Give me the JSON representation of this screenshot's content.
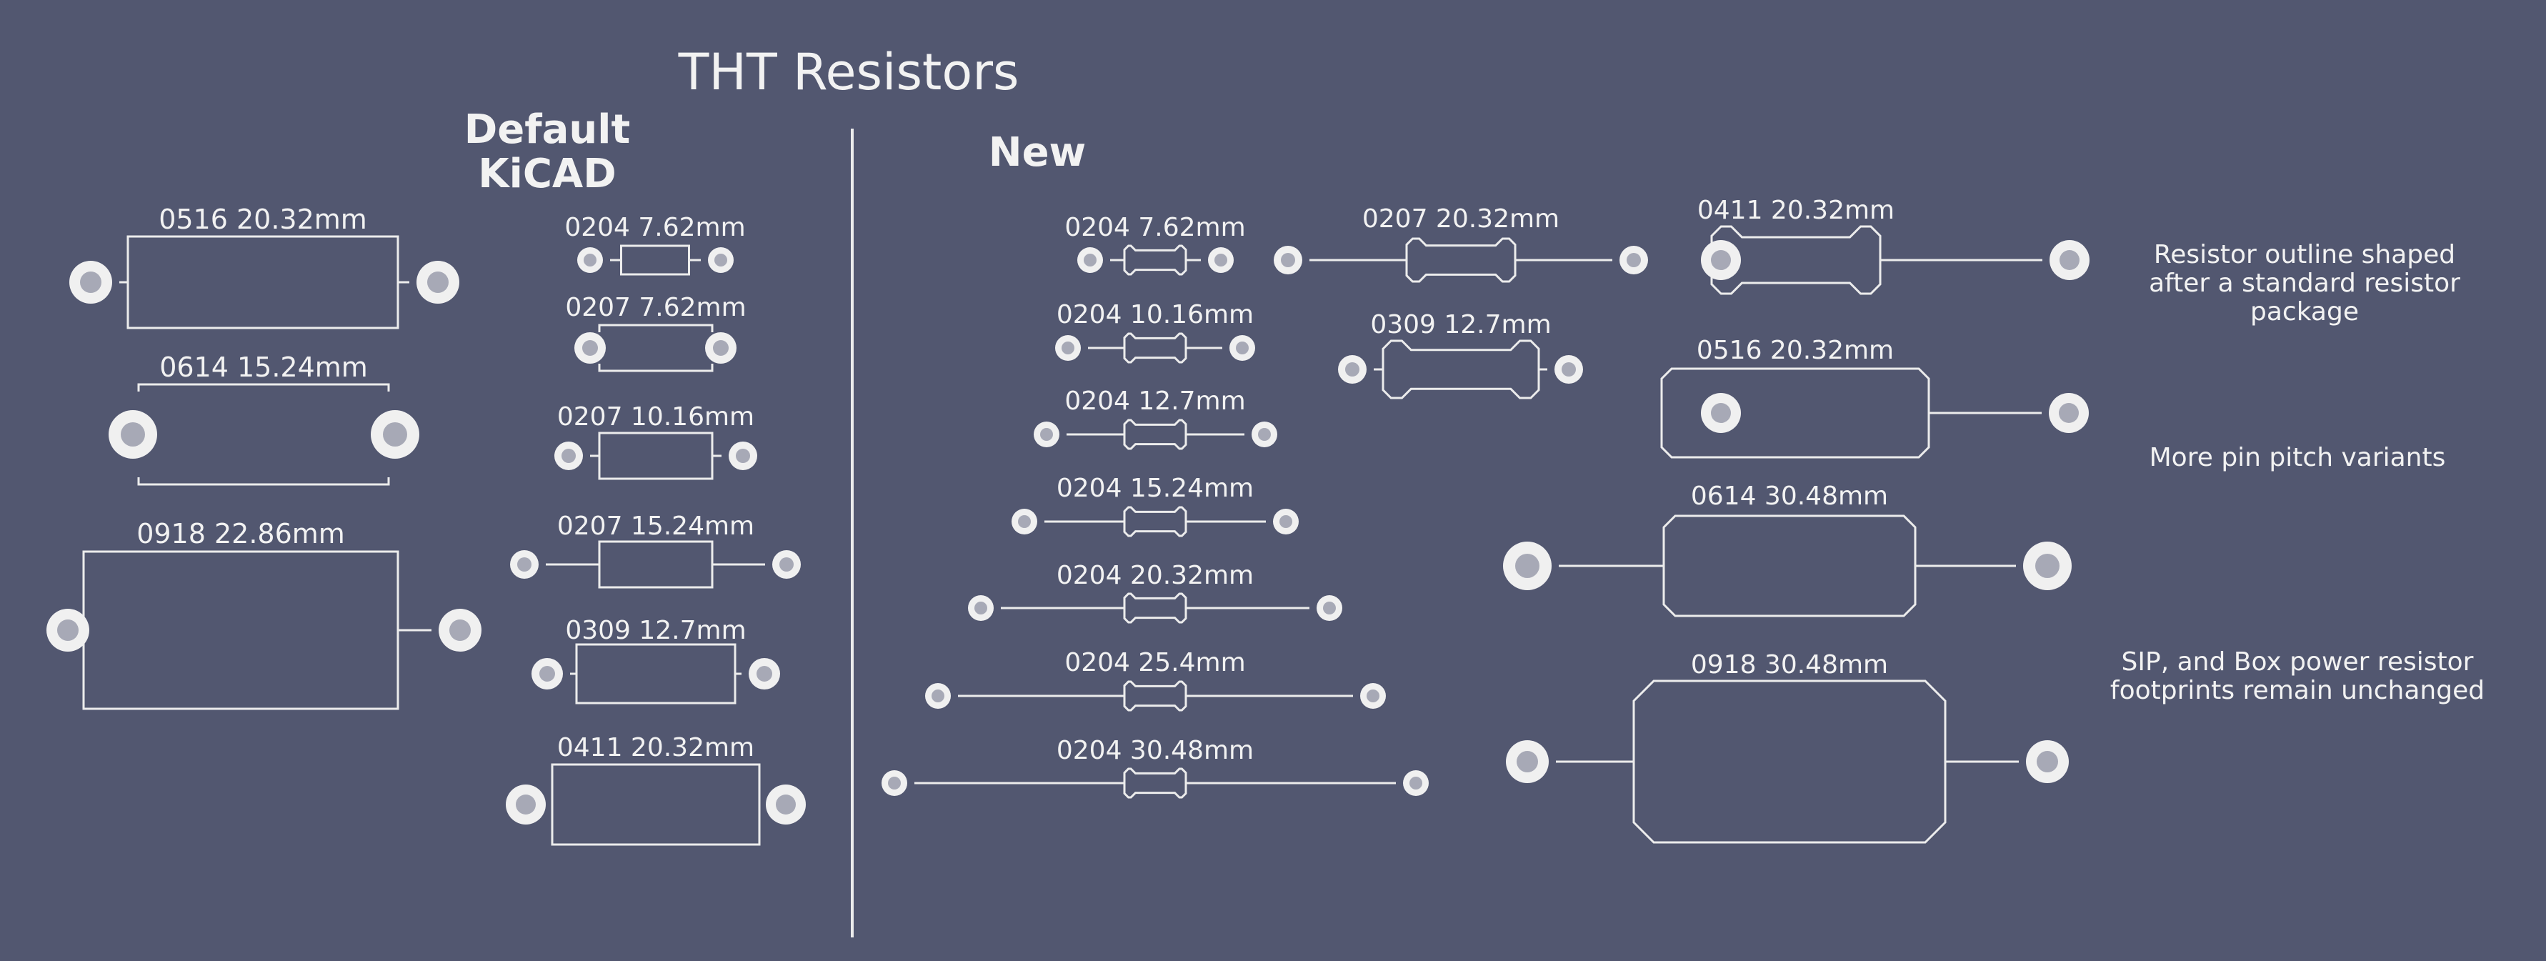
{
  "title": "THT Resistors",
  "sections": {
    "default_heading_line1": "Default",
    "default_heading_line2": "KiCAD",
    "new_heading": "New"
  },
  "default_large": [
    {
      "label": "0516 20.32mm"
    },
    {
      "label": "0614 15.24mm"
    },
    {
      "label": "0918 22.86mm"
    }
  ],
  "default_small": [
    {
      "label": "0204 7.62mm"
    },
    {
      "label": "0207 7.62mm"
    },
    {
      "label": "0207 10.16mm"
    },
    {
      "label": "0207 15.24mm"
    },
    {
      "label": "0309 12.7mm"
    },
    {
      "label": "0411 20.32mm"
    }
  ],
  "new_0204": [
    {
      "label": "0204 7.62mm"
    },
    {
      "label": "0204 10.16mm"
    },
    {
      "label": "0204 12.7mm"
    },
    {
      "label": "0204 15.24mm"
    },
    {
      "label": "0204 20.32mm"
    },
    {
      "label": "0204 25.4mm"
    },
    {
      "label": "0204 30.48mm"
    }
  ],
  "new_mid": [
    {
      "label": "0207 20.32mm"
    },
    {
      "label": "0309 12.7mm"
    }
  ],
  "new_large": [
    {
      "label": "0411 20.32mm"
    },
    {
      "label": "0516 20.32mm"
    },
    {
      "label": "0614 30.48mm"
    },
    {
      "label": "0918 30.48mm"
    }
  ],
  "notes": {
    "note1_line1": "Resistor outline shaped",
    "note1_line2": "after a standard resistor",
    "note1_line3": "package",
    "note2": "More pin pitch variants",
    "note3_line1": "SIP, and Box power resistor",
    "note3_line2": "footprints remain unchanged"
  },
  "colors": {
    "background": "#525770",
    "silkscreen": "#ececec",
    "pad": "#f0f0f0",
    "drill": "#a7a9b6"
  }
}
